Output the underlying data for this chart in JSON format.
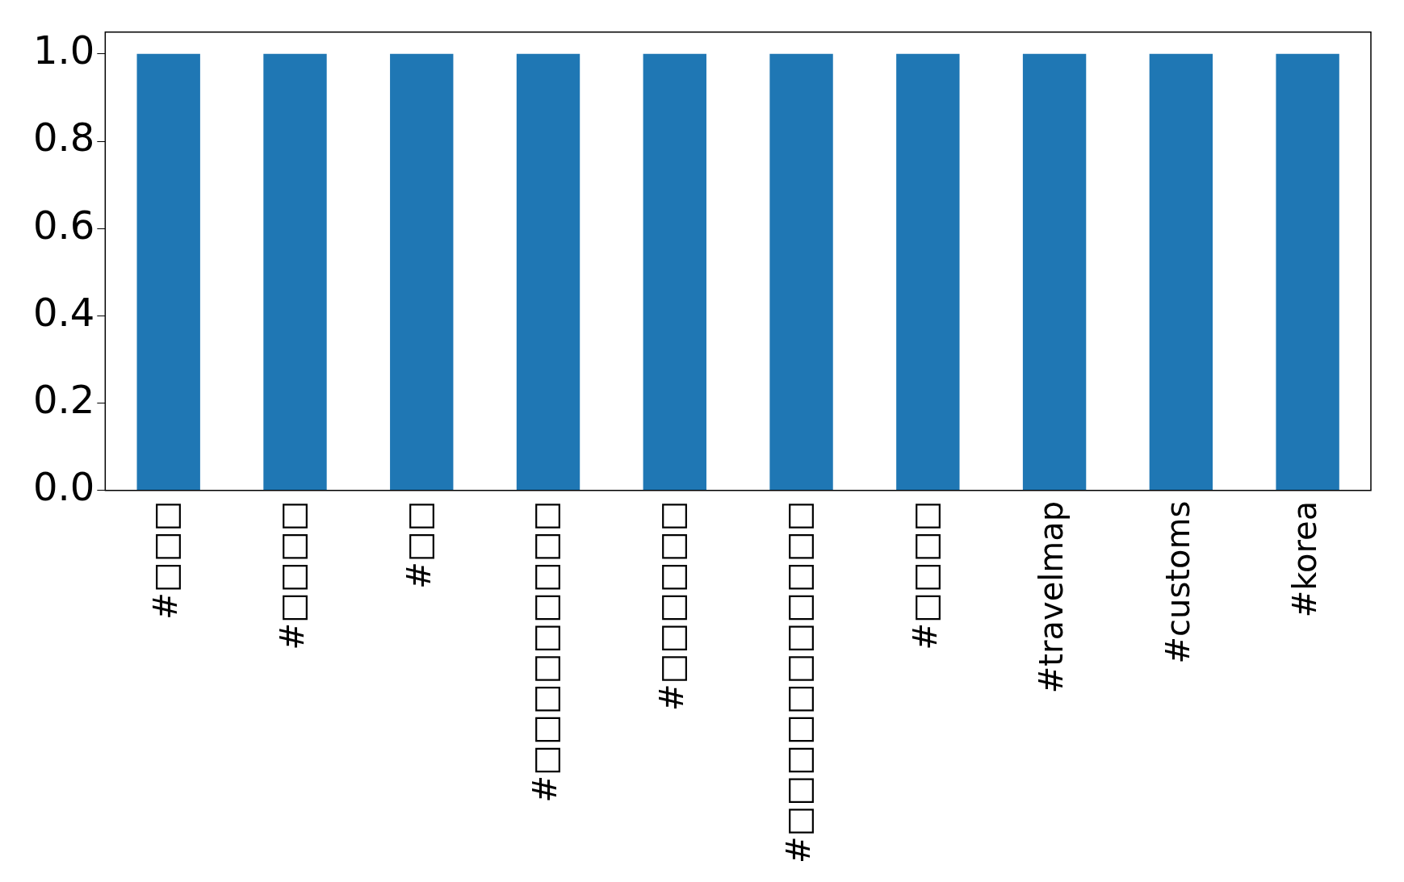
{
  "chart_data": {
    "type": "bar",
    "categories": [
      "#□□□",
      "#□□□□",
      "#□□",
      "#□□□□□□□□□",
      "#□□□□□□",
      "#□□□□□□□□□□□",
      "#□□□□",
      "#travelmap",
      "#customs",
      "#korea"
    ],
    "values": [
      1,
      1,
      1,
      1,
      1,
      1,
      1,
      1,
      1,
      1
    ],
    "color": "#1f77b4",
    "ylim": [
      0,
      1.05
    ],
    "yticks": [
      {
        "value": 0,
        "label": "0.0"
      },
      {
        "value": 0.2,
        "label": "0.2"
      },
      {
        "value": 0.4,
        "label": "0.4"
      },
      {
        "value": 0.6,
        "label": "0.6"
      },
      {
        "value": 0.8,
        "label": "0.8"
      },
      {
        "value": 1,
        "label": "1.0"
      }
    ],
    "grid": false,
    "legend": false
  }
}
